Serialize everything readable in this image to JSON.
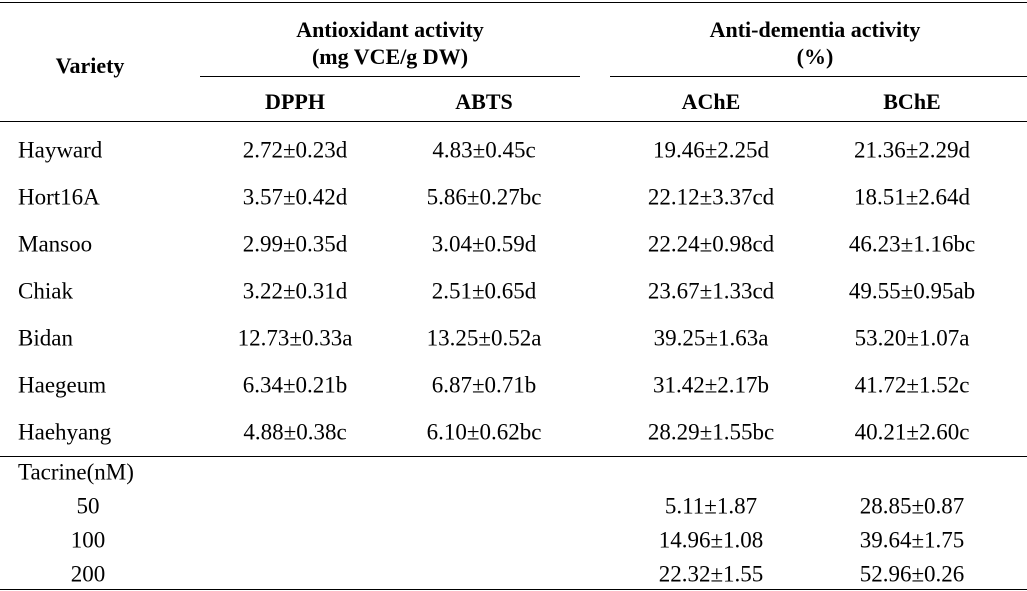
{
  "header": {
    "variety": "Variety",
    "groups": [
      {
        "title": [
          "Antioxidant activity",
          "(mg VCE/g DW)"
        ],
        "columns": [
          "DPPH",
          "ABTS"
        ]
      },
      {
        "title": [
          "Anti-dementia activity",
          "(%)"
        ],
        "columns": [
          "AChE",
          "BChE"
        ]
      }
    ]
  },
  "rows": [
    [
      "Hayward",
      "2.72±0.23d",
      "4.83±0.45c",
      "19.46±2.25d",
      "21.36±2.29d"
    ],
    [
      "Hort16A",
      "3.57±0.42d",
      "5.86±0.27bc",
      "22.12±3.37cd",
      "18.51±2.64d"
    ],
    [
      "Mansoo",
      "2.99±0.35d",
      "3.04±0.59d",
      "22.24±0.98cd",
      "46.23±1.16bc"
    ],
    [
      "Chiak",
      "3.22±0.31d",
      "2.51±0.65d",
      "23.67±1.33cd",
      "49.55±0.95ab"
    ],
    [
      "Bidan",
      "12.73±0.33a",
      "13.25±0.52a",
      "39.25±1.63a",
      "53.20±1.07a"
    ],
    [
      "Haegeum",
      "6.34±0.21b",
      "6.87±0.71b",
      "31.42±2.17b",
      "41.72±1.52c"
    ],
    [
      "Haehyang",
      "4.88±0.38c",
      "6.10±0.62bc",
      "28.29±1.55bc",
      "40.21±2.60c"
    ]
  ],
  "tacrine": {
    "label": "Tacrine(nM)",
    "rows": [
      [
        "50",
        "5.11±1.87",
        "28.85±0.87"
      ],
      [
        "100",
        "14.96±1.08",
        "39.64±1.75"
      ],
      [
        "200",
        "22.32±1.55",
        "52.96±0.26"
      ]
    ]
  }
}
